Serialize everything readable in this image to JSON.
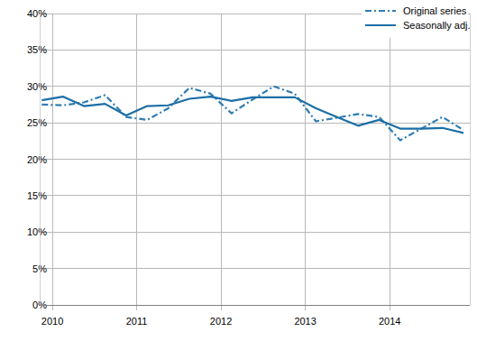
{
  "chart_data": {
    "type": "line",
    "x": [
      2009.875,
      2010.125,
      2010.375,
      2010.625,
      2010.875,
      2011.125,
      2011.375,
      2011.625,
      2011.875,
      2012.125,
      2012.375,
      2012.625,
      2012.875,
      2013.125,
      2013.375,
      2013.625,
      2013.875,
      2014.125,
      2014.375,
      2014.625,
      2014.875
    ],
    "series": [
      {
        "name": "Original series",
        "color": "#2f7db3",
        "line_style": "dashdot",
        "values": [
          27.5,
          27.4,
          27.8,
          28.8,
          25.8,
          25.4,
          27.0,
          29.8,
          29.0,
          26.3,
          28.2,
          30.0,
          29.0,
          25.2,
          25.7,
          26.2,
          25.8,
          22.6,
          24.2,
          25.8,
          24.0
        ]
      },
      {
        "name": "Seasonally adj.",
        "color": "#1c6ea6",
        "line_style": "solid",
        "values": [
          28.1,
          28.6,
          27.3,
          27.6,
          26.0,
          27.3,
          27.4,
          28.3,
          28.6,
          28.0,
          28.5,
          28.5,
          28.5,
          27.0,
          25.8,
          24.6,
          25.4,
          24.2,
          24.2,
          24.3,
          23.6
        ]
      }
    ],
    "xlim": [
      2009.85,
      2014.95
    ],
    "xticks": [
      2010,
      2011,
      2012,
      2013,
      2014
    ],
    "ylim": [
      0,
      40
    ],
    "yticks": [
      {
        "value": 0,
        "label": "0%"
      },
      {
        "value": 5,
        "label": "5%"
      },
      {
        "value": 10,
        "label": "10%"
      },
      {
        "value": 15,
        "label": "15%"
      },
      {
        "value": 20,
        "label": "20%"
      },
      {
        "value": 25,
        "label": "25%"
      },
      {
        "value": 30,
        "label": "30%"
      },
      {
        "value": 35,
        "label": "35%"
      },
      {
        "value": 40,
        "label": "40%"
      }
    ],
    "grid": true,
    "legend": "upper right"
  }
}
